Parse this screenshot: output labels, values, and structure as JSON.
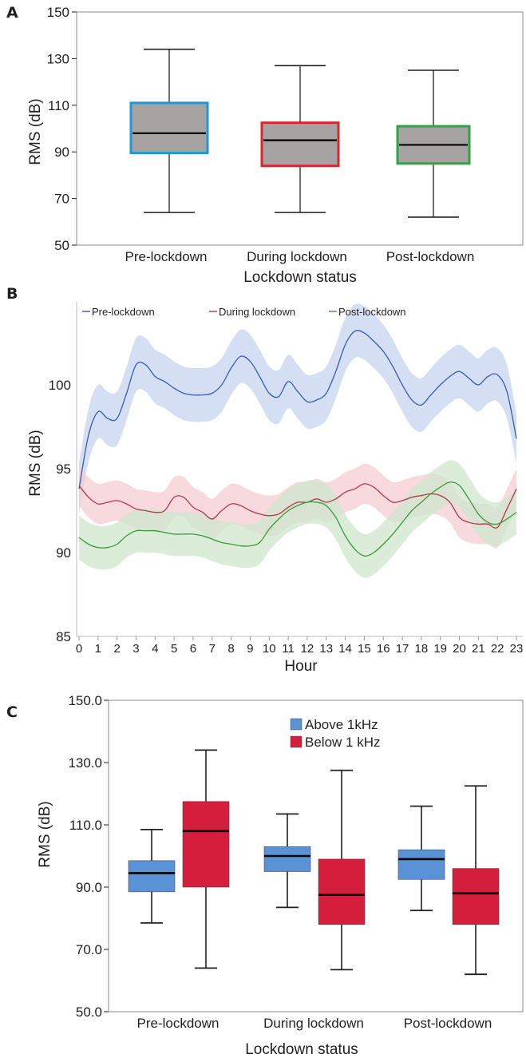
{
  "colors": {
    "panelA_fill": "#a7a3a3",
    "panelA_borders": [
      "#1e97d9",
      "#d8282e",
      "#2ea348"
    ],
    "panelB_lines": [
      "#3a5bb5",
      "#b5364a",
      "#3b9a3b"
    ],
    "panelB_bands": [
      "#c6d4ef",
      "#f6cdd3",
      "#cfe6cc"
    ],
    "panelC_above": "#5a92d6",
    "panelC_below": "#d41e3c",
    "axis": "#231f20"
  },
  "chart_data": [
    {
      "panel": "A",
      "type": "box",
      "xlabel": "Lockdown status",
      "ylabel": "RMS (dB)",
      "ylim": [
        50,
        150
      ],
      "yticks": [
        "50",
        "70",
        "90",
        "110",
        "130",
        "150"
      ],
      "categories": [
        "Pre-lockdown",
        "During lockdown",
        "Post-lockdown"
      ],
      "boxes": [
        {
          "min": 64,
          "q1": 89.5,
          "median": 98,
          "q3": 111,
          "max": 134
        },
        {
          "min": 64,
          "q1": 84,
          "median": 95,
          "q3": 102.5,
          "max": 127
        },
        {
          "min": 62,
          "q1": 85,
          "median": 93,
          "q3": 101,
          "max": 125
        }
      ]
    },
    {
      "panel": "B",
      "type": "line",
      "xlabel": "Hour",
      "ylabel": "RMS (dB)",
      "ylim": [
        85,
        104.5
      ],
      "yticks": [
        "85",
        "90",
        "95",
        "100"
      ],
      "xticks": [
        "0",
        "1",
        "2",
        "3",
        "4",
        "5",
        "6",
        "7",
        "8",
        "9",
        "10",
        "11",
        "12",
        "13",
        "14",
        "15",
        "16",
        "17",
        "18",
        "19",
        "20",
        "21",
        "22",
        "23"
      ],
      "x": [
        0,
        0.5,
        1,
        1.5,
        2,
        2.5,
        3,
        3.5,
        4,
        4.5,
        5,
        5.5,
        6,
        6.5,
        7,
        7.5,
        8,
        8.5,
        9,
        9.5,
        10,
        10.5,
        11,
        11.5,
        12,
        12.5,
        13,
        13.5,
        14,
        14.5,
        15,
        15.5,
        16,
        16.5,
        17,
        17.5,
        18,
        18.5,
        19,
        19.5,
        20,
        20.5,
        21,
        21.5,
        22,
        22.5,
        23
      ],
      "series": [
        {
          "name": "Pre-lockdown",
          "values": [
            93.8,
            97.0,
            98.4,
            98.0,
            98.0,
            99.5,
            101.2,
            101.2,
            100.5,
            100.2,
            99.8,
            99.5,
            99.4,
            99.4,
            99.5,
            100.0,
            101.0,
            101.7,
            101.4,
            100.5,
            99.5,
            99.3,
            100.2,
            99.6,
            99.0,
            99.1,
            99.5,
            100.8,
            102.4,
            103.2,
            103.1,
            102.6,
            102.0,
            101.1,
            100.0,
            99.1,
            98.8,
            99.4,
            100.0,
            100.5,
            100.8,
            100.4,
            100.0,
            100.5,
            100.6,
            99.6,
            96.8
          ],
          "band": [
            1.5,
            1.6,
            1.6,
            1.6,
            1.6,
            1.6,
            1.6,
            1.6,
            1.6,
            1.6,
            1.6,
            1.6,
            1.6,
            1.6,
            1.6,
            1.6,
            1.6,
            1.6,
            1.6,
            1.6,
            1.6,
            1.6,
            1.6,
            1.6,
            1.6,
            1.6,
            1.6,
            1.6,
            1.6,
            1.6,
            1.6,
            1.6,
            1.6,
            1.6,
            1.6,
            1.6,
            1.6,
            1.6,
            1.6,
            1.6,
            1.6,
            1.6,
            1.6,
            1.6,
            1.6,
            1.6,
            1.5
          ]
        },
        {
          "name": "During lockdown",
          "values": [
            94.0,
            93.3,
            92.9,
            93.0,
            93.1,
            92.9,
            92.6,
            92.5,
            92.4,
            92.5,
            93.3,
            93.3,
            92.7,
            92.4,
            92.0,
            92.5,
            92.9,
            92.8,
            92.5,
            92.3,
            92.2,
            92.3,
            92.7,
            93.0,
            93.0,
            93.2,
            93.0,
            93.2,
            93.6,
            93.8,
            94.1,
            93.9,
            93.4,
            93.0,
            93.1,
            93.3,
            93.4,
            93.5,
            93.4,
            93.0,
            92.1,
            91.8,
            91.7,
            91.7,
            91.5,
            92.6,
            93.8
          ],
          "band": [
            1.2,
            1.2,
            1.2,
            1.2,
            1.2,
            1.2,
            1.2,
            1.2,
            1.2,
            1.2,
            1.2,
            1.2,
            1.2,
            1.2,
            1.2,
            1.2,
            1.2,
            1.2,
            1.2,
            1.2,
            1.2,
            1.2,
            1.2,
            1.2,
            1.2,
            1.2,
            1.2,
            1.2,
            1.2,
            1.2,
            1.2,
            1.2,
            1.2,
            1.2,
            1.2,
            1.2,
            1.2,
            1.2,
            1.2,
            1.2,
            1.2,
            1.2,
            1.2,
            1.2,
            1.2,
            1.2,
            1.2
          ]
        },
        {
          "name": "Post-lockdown",
          "values": [
            90.9,
            90.5,
            90.3,
            90.3,
            90.5,
            91.0,
            91.3,
            91.3,
            91.3,
            91.2,
            91.1,
            91.1,
            91.1,
            91.0,
            90.8,
            90.6,
            90.5,
            90.4,
            90.4,
            90.6,
            91.4,
            92.0,
            92.5,
            92.8,
            93.0,
            93.0,
            92.8,
            92.1,
            91.0,
            90.2,
            89.8,
            90.0,
            90.5,
            91.1,
            91.8,
            92.5,
            93.0,
            93.5,
            93.9,
            94.2,
            94.0,
            93.2,
            92.3,
            91.8,
            91.7,
            92.0,
            92.4
          ],
          "band": [
            1.3,
            1.3,
            1.3,
            1.3,
            1.3,
            1.3,
            1.3,
            1.3,
            1.3,
            1.3,
            1.3,
            1.3,
            1.3,
            1.3,
            1.3,
            1.3,
            1.3,
            1.3,
            1.3,
            1.3,
            1.3,
            1.3,
            1.3,
            1.3,
            1.3,
            1.3,
            1.3,
            1.3,
            1.3,
            1.3,
            1.3,
            1.3,
            1.3,
            1.3,
            1.3,
            1.3,
            1.3,
            1.3,
            1.3,
            1.3,
            1.3,
            1.3,
            1.3,
            1.3,
            1.3,
            1.3,
            1.3
          ]
        }
      ]
    },
    {
      "panel": "C",
      "type": "box",
      "xlabel": "Lockdown status",
      "ylabel": "RMS (dB)",
      "ylim": [
        50,
        150
      ],
      "yticks": [
        "50.0",
        "70.0",
        "90.0",
        "110.0",
        "130.0",
        "150.0"
      ],
      "categories": [
        "Pre-lockdown",
        "During lockdown",
        "Post-lockdown"
      ],
      "series": [
        {
          "name": "Above 1kHz",
          "boxes": [
            {
              "min": 78.5,
              "q1": 88.5,
              "median": 94.5,
              "q3": 98.5,
              "max": 108.5
            },
            {
              "min": 83.5,
              "q1": 95,
              "median": 100,
              "q3": 103,
              "max": 113.5
            },
            {
              "min": 82.5,
              "q1": 92.5,
              "median": 99,
              "q3": 102,
              "max": 116
            }
          ]
        },
        {
          "name": "Below 1 kHz",
          "boxes": [
            {
              "min": 64,
              "q1": 90,
              "median": 108,
              "q3": 117.5,
              "max": 134
            },
            {
              "min": 63.5,
              "q1": 78,
              "median": 87.5,
              "q3": 99,
              "max": 127.5
            },
            {
              "min": 62,
              "q1": 78,
              "median": 88,
              "q3": 96,
              "max": 122.5
            }
          ]
        }
      ]
    }
  ]
}
